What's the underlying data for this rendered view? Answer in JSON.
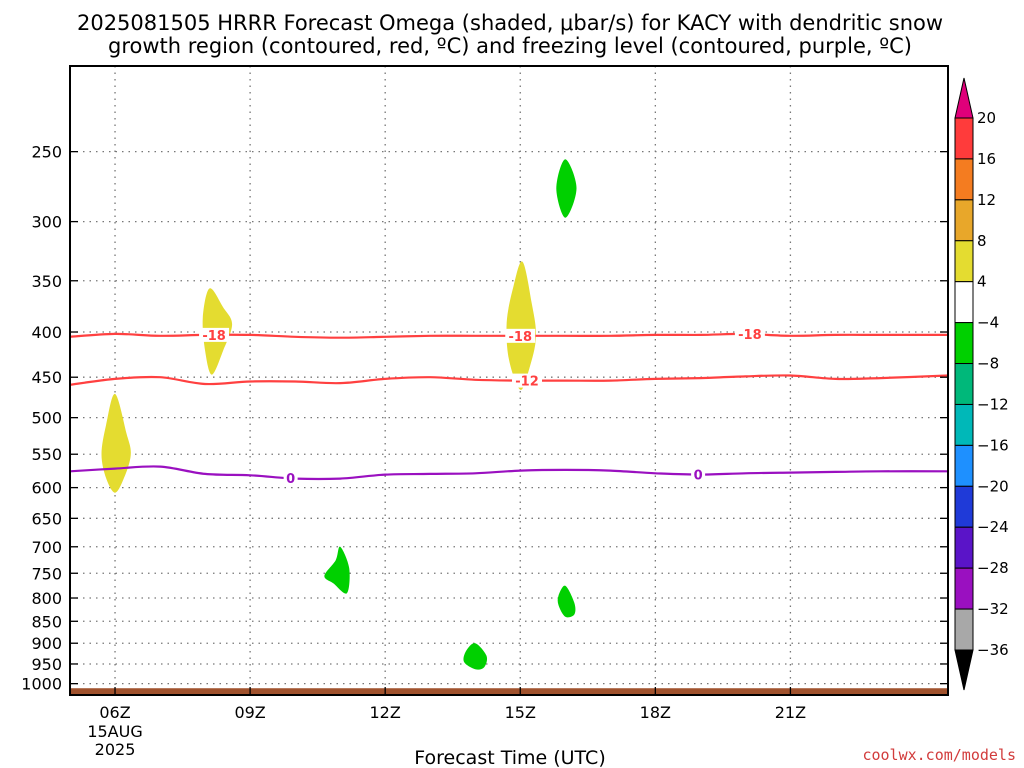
{
  "title": {
    "line1": "2025081505 HRRR Forecast Omega (shaded, μbar/s) for KACY with dendritic snow",
    "line2": "growth region (contoured, red, ºC) and freezing level (contoured, purple, ºC)"
  },
  "credit": "coolwx.com/models",
  "chart_data": {
    "type": "time-height cross section",
    "title": "2025081505 HRRR Forecast Omega (shaded, μbar/s) for KACY with dendritic snow growth region (contoured, red, ºC) and freezing level (contoured, purple, ºC)",
    "xlabel": "Forecast Time (UTC)",
    "x_range": [
      5,
      24.5
    ],
    "x_ticks": [
      {
        "value": 6,
        "label": "06Z",
        "sub1": "15AUG",
        "sub2": "2025"
      },
      {
        "value": 9,
        "label": "09Z"
      },
      {
        "value": 12,
        "label": "12Z"
      },
      {
        "value": 15,
        "label": "15Z"
      },
      {
        "value": 18,
        "label": "18Z"
      },
      {
        "value": 21,
        "label": "21Z"
      }
    ],
    "y_axis": {
      "scale": "pressure (mb)",
      "top": 200,
      "bottom": 1030,
      "inverted": true
    },
    "y_ticks": [
      250,
      300,
      350,
      400,
      450,
      500,
      550,
      600,
      650,
      700,
      750,
      800,
      850,
      900,
      950,
      1000
    ],
    "grid": "dotted",
    "colorbar": {
      "levels": [
        20,
        16,
        12,
        8,
        4,
        -4,
        -8,
        -12,
        -16,
        -20,
        -24,
        -28,
        -32,
        -36
      ],
      "bands": [
        {
          "from": 16,
          "to": 20,
          "color": "#ff3b3b"
        },
        {
          "from": 12,
          "to": 16,
          "color": "#f47c20"
        },
        {
          "from": 8,
          "to": 12,
          "color": "#e8a72a"
        },
        {
          "from": 4,
          "to": 8,
          "color": "#e4dc30"
        },
        {
          "from": -4,
          "to": 4,
          "color": "#ffffff"
        },
        {
          "from": -8,
          "to": -4,
          "color": "#00d000"
        },
        {
          "from": -12,
          "to": -8,
          "color": "#00b87a"
        },
        {
          "from": -16,
          "to": -12,
          "color": "#00b8b8"
        },
        {
          "from": -20,
          "to": -16,
          "color": "#1e90ff"
        },
        {
          "from": -24,
          "to": -20,
          "color": "#1f3ad8"
        },
        {
          "from": -28,
          "to": -24,
          "color": "#5a14c8"
        },
        {
          "from": -32,
          "to": -28,
          "color": "#9a10c0"
        },
        {
          "from": -36,
          "to": -32,
          "color": "#a8a8a8"
        }
      ],
      "top_arrow_color": "#e0007a",
      "bottom_arrow_color": "#000000"
    },
    "omega_areas": [
      {
        "name": "yellow-600mb-06z",
        "color": "#e4dc30",
        "points": [
          [
            6.0,
            470
          ],
          [
            6.25,
            520
          ],
          [
            6.35,
            550
          ],
          [
            6.2,
            585
          ],
          [
            6.0,
            608
          ],
          [
            5.8,
            585
          ],
          [
            5.7,
            550
          ],
          [
            5.8,
            510
          ]
        ]
      },
      {
        "name": "yellow-400mb-08z",
        "color": "#e4dc30",
        "points": [
          [
            8.1,
            357
          ],
          [
            8.4,
            375
          ],
          [
            8.6,
            392
          ],
          [
            8.4,
            420
          ],
          [
            8.15,
            447
          ],
          [
            8.0,
            420
          ],
          [
            7.95,
            385
          ]
        ]
      },
      {
        "name": "yellow-400mb-15z",
        "color": "#e4dc30",
        "points": [
          [
            15.05,
            333
          ],
          [
            15.25,
            370
          ],
          [
            15.35,
            405
          ],
          [
            15.2,
            440
          ],
          [
            15.0,
            465
          ],
          [
            14.75,
            430
          ],
          [
            14.7,
            390
          ],
          [
            14.85,
            355
          ]
        ]
      },
      {
        "name": "green-270mb-16z",
        "color": "#00d000",
        "points": [
          [
            16.0,
            255
          ],
          [
            16.25,
            275
          ],
          [
            16.0,
            297
          ],
          [
            15.8,
            275
          ]
        ]
      },
      {
        "name": "green-750mb-11z",
        "color": "#00d000",
        "points": [
          [
            11.0,
            700
          ],
          [
            11.2,
            740
          ],
          [
            11.15,
            790
          ],
          [
            10.85,
            770
          ],
          [
            10.65,
            755
          ],
          [
            10.9,
            725
          ]
        ]
      },
      {
        "name": "green-800mb-16z",
        "color": "#00d000",
        "points": [
          [
            16.0,
            775
          ],
          [
            16.2,
            810
          ],
          [
            16.2,
            835
          ],
          [
            16.0,
            840
          ],
          [
            15.85,
            815
          ],
          [
            15.85,
            795
          ]
        ]
      },
      {
        "name": "green-930mb-14z",
        "color": "#00d000",
        "points": [
          [
            14.0,
            900
          ],
          [
            14.25,
            930
          ],
          [
            14.2,
            958
          ],
          [
            14.0,
            963
          ],
          [
            13.75,
            945
          ],
          [
            13.8,
            918
          ]
        ]
      }
    ],
    "contours": [
      {
        "name": "dgz-minus18",
        "color": "#ff4040",
        "label": "-18",
        "points": [
          [
            5,
            405
          ],
          [
            6,
            402
          ],
          [
            7,
            404
          ],
          [
            8,
            403
          ],
          [
            9,
            403
          ],
          [
            10,
            405
          ],
          [
            11,
            406
          ],
          [
            12,
            405
          ],
          [
            13,
            404
          ],
          [
            14,
            404
          ],
          [
            15,
            404
          ],
          [
            16,
            404
          ],
          [
            17,
            404
          ],
          [
            18,
            403
          ],
          [
            19,
            403
          ],
          [
            20,
            402
          ],
          [
            21,
            404
          ],
          [
            22,
            403
          ],
          [
            23,
            403
          ],
          [
            24.5,
            403
          ]
        ],
        "label_at": [
          8.2,
          15.0,
          20.1
        ]
      },
      {
        "name": "dgz-minus12",
        "color": "#ff4040",
        "label": "-12",
        "points": [
          [
            5,
            459
          ],
          [
            6,
            452
          ],
          [
            7,
            450
          ],
          [
            8,
            458
          ],
          [
            9,
            455
          ],
          [
            10,
            455
          ],
          [
            11,
            457
          ],
          [
            12,
            452
          ],
          [
            13,
            450
          ],
          [
            14,
            453
          ],
          [
            15,
            454
          ],
          [
            16,
            454
          ],
          [
            17,
            454
          ],
          [
            18,
            452
          ],
          [
            19,
            451
          ],
          [
            20,
            449
          ],
          [
            21,
            448
          ],
          [
            22,
            452
          ],
          [
            23,
            451
          ],
          [
            24.5,
            448
          ]
        ],
        "label_at": [
          15.15
        ]
      },
      {
        "name": "freezing-level",
        "color": "#9a10c0",
        "label": "0",
        "points": [
          [
            5,
            575
          ],
          [
            6,
            571
          ],
          [
            7,
            568
          ],
          [
            8,
            579
          ],
          [
            9,
            581
          ],
          [
            10,
            586
          ],
          [
            11,
            586
          ],
          [
            12,
            580
          ],
          [
            13,
            579
          ],
          [
            14,
            578
          ],
          [
            15,
            574
          ],
          [
            16,
            573
          ],
          [
            17,
            574
          ],
          [
            18,
            578
          ],
          [
            19,
            580
          ],
          [
            20,
            578
          ],
          [
            21,
            577
          ],
          [
            22,
            576
          ],
          [
            23,
            575
          ],
          [
            24.5,
            575
          ]
        ],
        "label_at": [
          9.9,
          18.95
        ]
      }
    ],
    "ground": {
      "color": "#a0522d",
      "from_pressure": 1012
    }
  }
}
